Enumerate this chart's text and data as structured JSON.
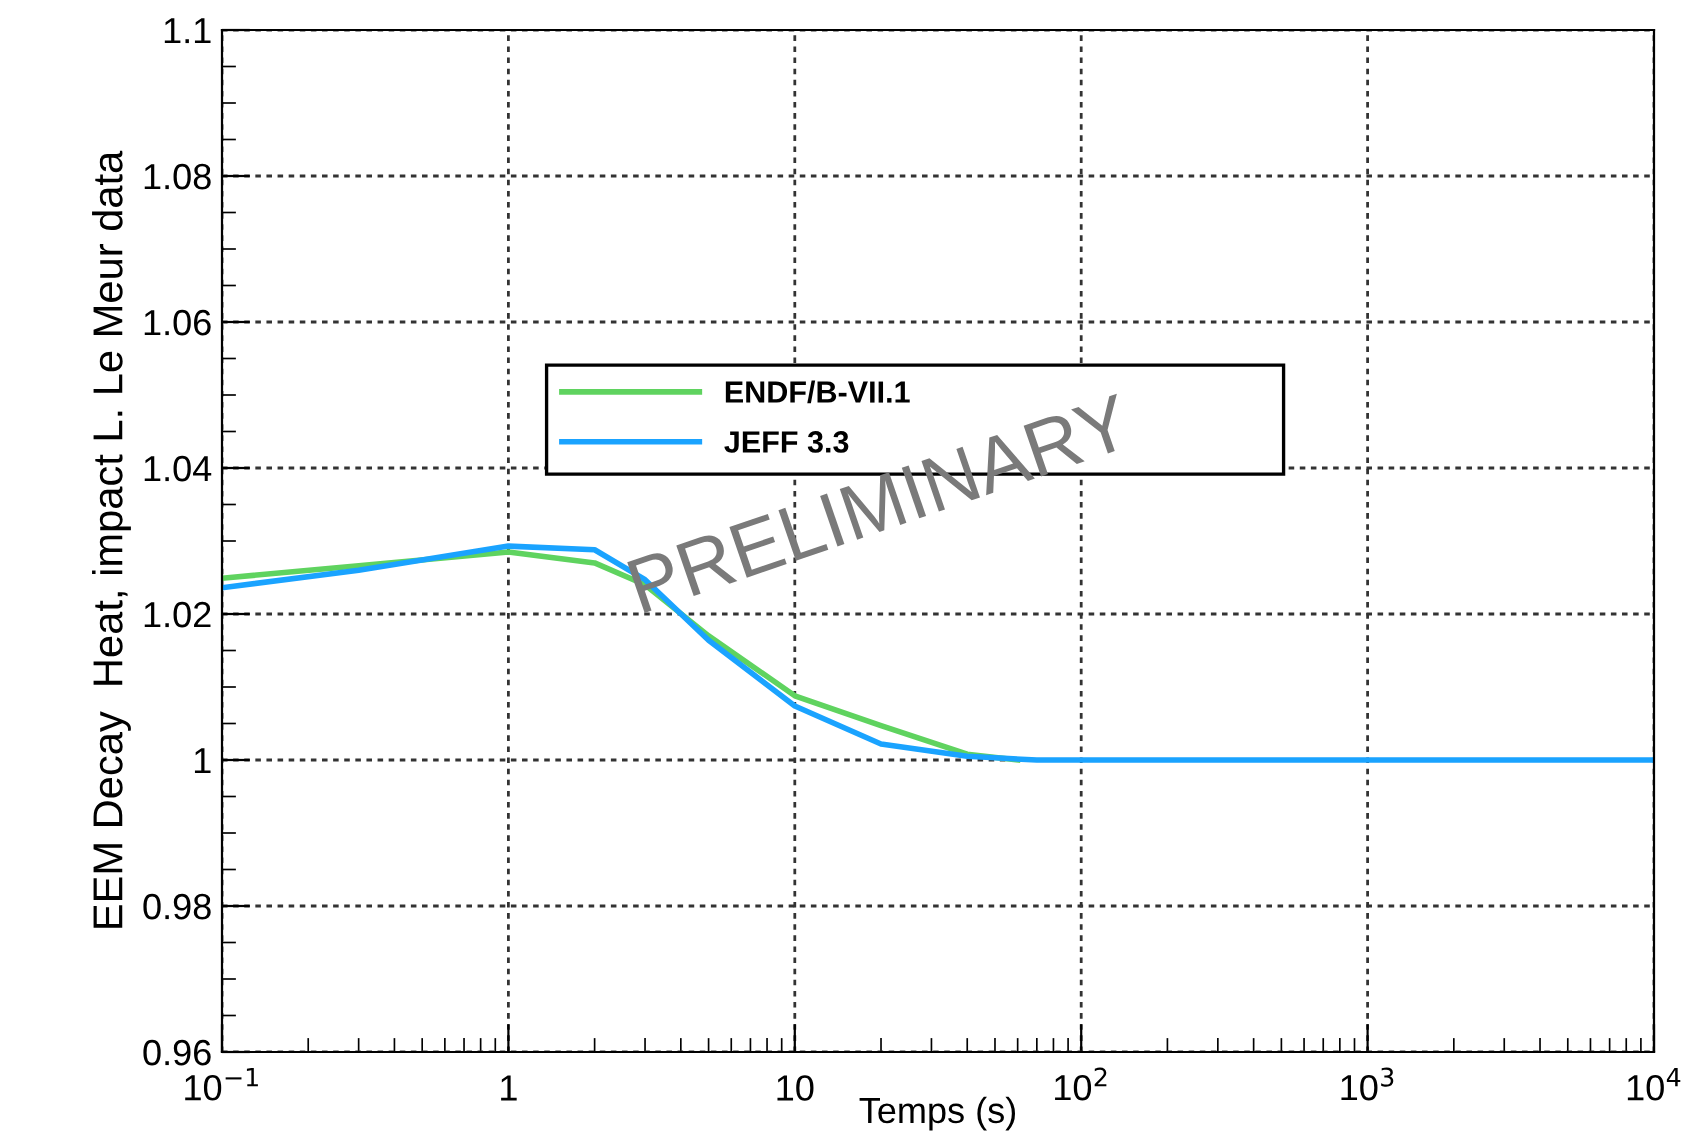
{
  "chart_data": {
    "type": "line",
    "xlabel": "Temps (s)",
    "ylabel": "EEM Decay  Heat, impact L. Le Meur data",
    "log": "x",
    "grid": true,
    "legend": "top",
    "line_style": "solid",
    "marker": "none",
    "xlim": [
      0.1,
      10000
    ],
    "xticks": [
      {
        "value": 0.1,
        "label": "10$^{−1}$"
      },
      1,
      10,
      {
        "value": 100,
        "label": "10$^{2}$"
      },
      {
        "value": 1000,
        "label": "10$^{3}$"
      },
      {
        "value": 10000,
        "label": "10$^{4}$"
      }
    ],
    "ylim": [
      0.96,
      1.1
    ],
    "yticks": [
      0.96,
      0.98,
      1,
      1.02,
      1.04,
      1.06,
      1.08,
      1.1
    ],
    "annotations": [
      "PRELIMINARY"
    ],
    "series": [
      {
        "name": "ENDF/B-VII.1",
        "color": "#5fd35f",
        "x": [
          0.1,
          0.3,
          1,
          2,
          3,
          5,
          10,
          20,
          40,
          60
        ],
        "values": [
          1.0249,
          1.0266,
          1.0285,
          1.027,
          1.024,
          1.017,
          1.0088,
          1.0047,
          1.0008,
          1.0
        ]
      },
      {
        "name": "JEFF 3.3",
        "color": "#1aa3ff",
        "x": [
          0.1,
          0.3,
          1,
          2,
          3,
          5,
          10,
          20,
          40,
          70,
          100,
          1000,
          10000
        ],
        "values": [
          1.0236,
          1.026,
          1.0293,
          1.0288,
          1.0247,
          1.0164,
          1.0074,
          1.0022,
          1.0005,
          1.0,
          1.0,
          1.0,
          1.0
        ]
      }
    ]
  }
}
